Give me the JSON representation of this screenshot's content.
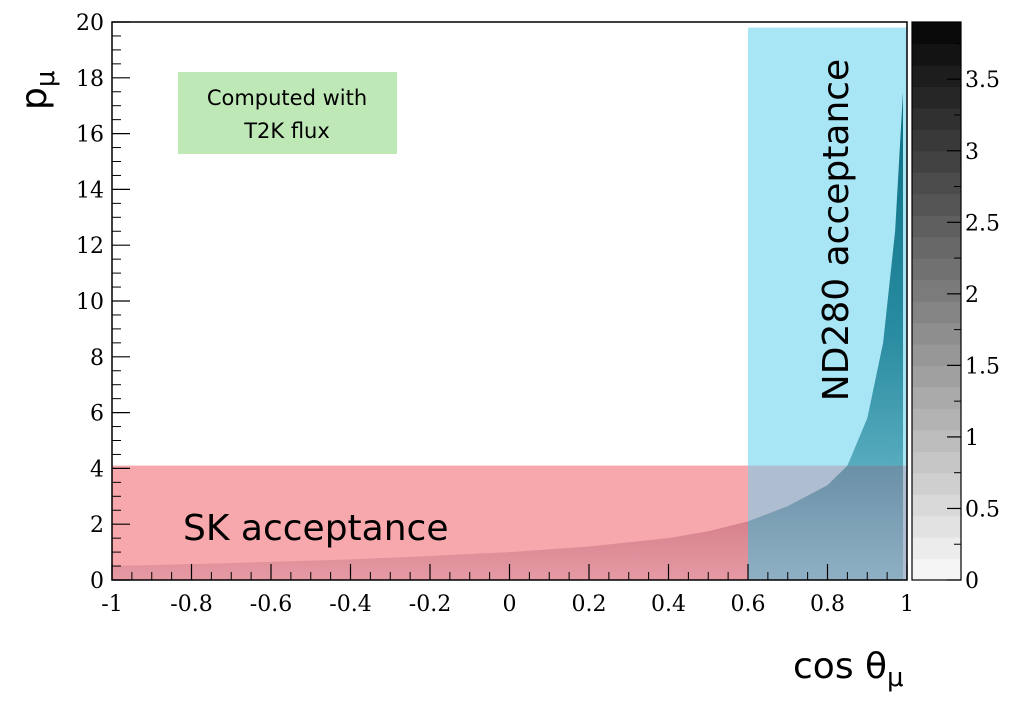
{
  "chart_data": {
    "type": "heatmap",
    "title": "",
    "xlabel": "cos θ",
    "xlabel_sub": "μ",
    "ylabel": "p",
    "ylabel_sub": "μ",
    "xlim": [
      -1,
      1
    ],
    "ylim": [
      0,
      20
    ],
    "x_ticks": [
      "-1",
      "-0.8",
      "-0.6",
      "-0.4",
      "-0.2",
      "0",
      "0.2",
      "0.4",
      "0.6",
      "0.8",
      "1"
    ],
    "x_tick_values": [
      -1,
      -0.8,
      -0.6,
      -0.4,
      -0.2,
      0,
      0.2,
      0.4,
      0.6,
      0.8,
      1
    ],
    "y_ticks": [
      "0",
      "2",
      "4",
      "6",
      "8",
      "10",
      "12",
      "14",
      "16",
      "18",
      "20"
    ],
    "y_tick_values": [
      0,
      2,
      4,
      6,
      8,
      10,
      12,
      14,
      16,
      18,
      20
    ],
    "colorbar": {
      "range": [
        0,
        3.9
      ],
      "ticks": [
        "0",
        "0.5",
        "1",
        "1.5",
        "2",
        "2.5",
        "3",
        "3.5"
      ],
      "tick_values": [
        0,
        0.5,
        1,
        1.5,
        2,
        2.5,
        3,
        3.5
      ]
    },
    "kinematic_edge": {
      "cos_theta": [
        -1.0,
        -0.8,
        -0.6,
        -0.4,
        -0.2,
        0.0,
        0.2,
        0.4,
        0.5,
        0.6,
        0.7,
        0.8,
        0.85,
        0.9,
        0.94,
        0.97,
        0.99
      ],
      "p_max": [
        0.5,
        0.57,
        0.65,
        0.74,
        0.86,
        1.0,
        1.2,
        1.5,
        1.75,
        2.1,
        2.65,
        3.4,
        4.1,
        5.8,
        8.5,
        12.5,
        17.5
      ]
    },
    "regions": [
      {
        "label": "SK acceptance",
        "cos_theta": [
          -1,
          0.6
        ],
        "p": [
          0,
          4.1
        ],
        "color": "#f7a8ad"
      },
      {
        "label": "ND280 acceptance",
        "cos_theta": [
          0.6,
          1
        ],
        "p": [
          0,
          19.8
        ],
        "color": "#a9e6f5"
      }
    ],
    "annotation": {
      "lines": [
        "Computed with",
        "T2K flux"
      ],
      "color": "#bfe8b7"
    }
  }
}
